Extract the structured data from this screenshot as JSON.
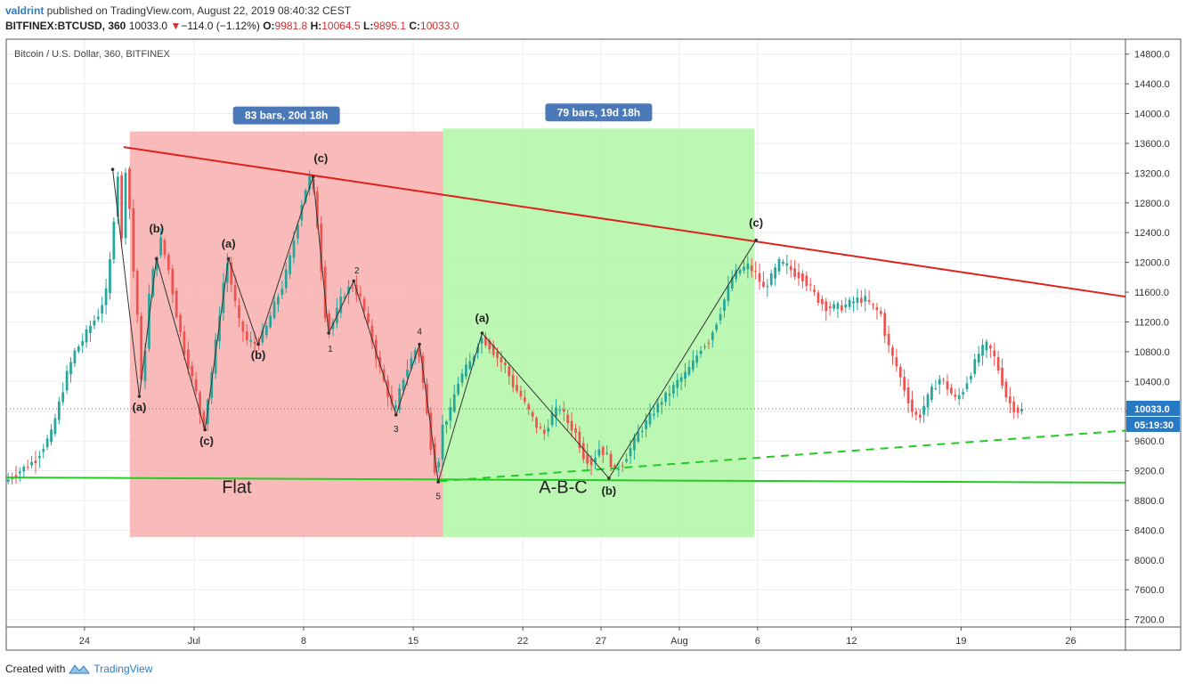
{
  "header": {
    "author": "valdrint",
    "published_text": " published on TradingView.com, August 22, 2019 08:40:32 CEST",
    "symbol": "BITFINEX:BTCUSD, 360",
    "last": "10033.0",
    "change_arrow": "▼",
    "change": "−114.0 (−1.12%)",
    "open_label": "O:",
    "open": "9981.8",
    "high_label": "H:",
    "high": "10064.5",
    "low_label": "L:",
    "low": "9895.1",
    "close_label": "C:",
    "close": "10033.0"
  },
  "footer": {
    "created_with": "Created with",
    "brand": "TradingView",
    "logo_icon": "tradingview-logo-icon"
  },
  "chart_data": {
    "type": "candlestick",
    "title": "Bitcoin / U.S. Dollar, 360, BITFINEX",
    "ylim": [
      7100,
      15000
    ],
    "yticks": [
      7200,
      7600,
      8000,
      8400,
      8800,
      9200,
      9600,
      10000,
      10400,
      10800,
      11200,
      11600,
      12000,
      12400,
      12800,
      13200,
      13600,
      14000,
      14400,
      14800
    ],
    "ytick_labels": [
      "7200.0",
      "7600.0",
      "8000.0",
      "8400.0",
      "8800.0",
      "9200.0",
      "9600.0",
      "10000.0",
      "10400.0",
      "10800.0",
      "11200.0",
      "11600.0",
      "12000.0",
      "12400.0",
      "12800.0",
      "13200.0",
      "13600.0",
      "14000.0",
      "14400.0",
      "14800.0"
    ],
    "xlim": [
      -5,
      66.5
    ],
    "xticks": [
      {
        "day": 0,
        "label": "24"
      },
      {
        "day": 7,
        "label": "Jul"
      },
      {
        "day": 14,
        "label": "8"
      },
      {
        "day": 21,
        "label": "15"
      },
      {
        "day": 28,
        "label": "22"
      },
      {
        "day": 33,
        "label": "27"
      },
      {
        "day": 38,
        "label": "Aug"
      },
      {
        "day": 43,
        "label": "6"
      },
      {
        "day": 49,
        "label": "12"
      },
      {
        "day": 56,
        "label": "19"
      },
      {
        "day": 63,
        "label": "26"
      }
    ],
    "last_price": 10033.0,
    "last_price_label": "10033.0",
    "countdown": "05:19:30",
    "colors": {
      "up": "#26a69a",
      "down": "#ef5350",
      "resistance": "#e0201c",
      "support": "#22cc22",
      "flat_zone": "#f7a3a3",
      "abc_zone": "#a6f59a",
      "badge": "#4a78b8",
      "last_price": "#2879c4"
    },
    "price_path": [
      [
        -5,
        9050
      ],
      [
        -4.5,
        9120
      ],
      [
        -4,
        9200
      ],
      [
        -3,
        9350
      ],
      [
        -2,
        9700
      ],
      [
        -1.5,
        10100
      ],
      [
        -1,
        10500
      ],
      [
        -0.5,
        10800
      ],
      [
        0,
        10950
      ],
      [
        0.5,
        11150
      ],
      [
        1,
        11300
      ],
      [
        1.5,
        11600
      ],
      [
        1.8,
        12100
      ],
      [
        2,
        12600
      ],
      [
        2.3,
        13300
      ],
      [
        2.5,
        12300
      ],
      [
        2.8,
        13450
      ],
      [
        3.2,
        12000
      ],
      [
        3.5,
        11300
      ],
      [
        3.8,
        10200
      ],
      [
        4.2,
        11500
      ],
      [
        4.6,
        12000
      ],
      [
        5,
        12300
      ],
      [
        5.5,
        11900
      ],
      [
        6,
        11300
      ],
      [
        6.5,
        10800
      ],
      [
        7.2,
        10300
      ],
      [
        7.7,
        9750
      ],
      [
        8.3,
        10600
      ],
      [
        8.8,
        11400
      ],
      [
        9.2,
        12050
      ],
      [
        9.6,
        11600
      ],
      [
        10,
        11200
      ],
      [
        10.5,
        10950
      ],
      [
        11.1,
        10900
      ],
      [
        11.7,
        11100
      ],
      [
        12.2,
        11400
      ],
      [
        12.8,
        11700
      ],
      [
        13.3,
        12100
      ],
      [
        13.7,
        12500
      ],
      [
        14.1,
        12900
      ],
      [
        14.6,
        13200
      ],
      [
        15,
        12500
      ],
      [
        15.3,
        11800
      ],
      [
        15.6,
        11050
      ],
      [
        16,
        11200
      ],
      [
        16.6,
        11550
      ],
      [
        17.2,
        11700
      ],
      [
        17.8,
        11500
      ],
      [
        18.3,
        11100
      ],
      [
        18.8,
        10700
      ],
      [
        19.4,
        10300
      ],
      [
        19.9,
        9950
      ],
      [
        20.4,
        10400
      ],
      [
        21,
        10700
      ],
      [
        21.4,
        10900
      ],
      [
        21.8,
        10300
      ],
      [
        22.2,
        9600
      ],
      [
        22.6,
        9100
      ],
      [
        23,
        9800
      ],
      [
        23.5,
        10000
      ],
      [
        23.9,
        10350
      ],
      [
        24.4,
        10550
      ],
      [
        24.9,
        10700
      ],
      [
        25.4,
        11000
      ],
      [
        25.9,
        10900
      ],
      [
        26.4,
        10750
      ],
      [
        27,
        10600
      ],
      [
        27.5,
        10350
      ],
      [
        28,
        10200
      ],
      [
        28.5,
        10000
      ],
      [
        29,
        9800
      ],
      [
        29.5,
        9700
      ],
      [
        30,
        9950
      ],
      [
        30.5,
        10050
      ],
      [
        31,
        9850
      ],
      [
        31.5,
        9700
      ],
      [
        32,
        9400
      ],
      [
        32.5,
        9300
      ],
      [
        33,
        9500
      ],
      [
        33.5,
        9400
      ],
      [
        34,
        9200
      ],
      [
        34.5,
        9300
      ],
      [
        35,
        9500
      ],
      [
        35.5,
        9700
      ],
      [
        36,
        9850
      ],
      [
        36.5,
        10000
      ],
      [
        37,
        10150
      ],
      [
        37.5,
        10250
      ],
      [
        38,
        10400
      ],
      [
        38.5,
        10500
      ],
      [
        39,
        10650
      ],
      [
        39.5,
        10850
      ],
      [
        40,
        10950
      ],
      [
        40.5,
        11200
      ],
      [
        41,
        11500
      ],
      [
        41.5,
        11800
      ],
      [
        42,
        11900
      ],
      [
        42.5,
        11950
      ],
      [
        43,
        11850
      ],
      [
        43.5,
        11650
      ],
      [
        44,
        11800
      ],
      [
        44.5,
        12000
      ],
      [
        45,
        11950
      ],
      [
        45.5,
        11850
      ],
      [
        46,
        11800
      ],
      [
        46.5,
        11650
      ],
      [
        47,
        11500
      ],
      [
        47.5,
        11400
      ],
      [
        48,
        11400
      ],
      [
        48.5,
        11400
      ],
      [
        49,
        11450
      ],
      [
        49.5,
        11500
      ],
      [
        50,
        11500
      ],
      [
        50.5,
        11400
      ],
      [
        51,
        11300
      ],
      [
        51.3,
        11000
      ],
      [
        51.6,
        10800
      ],
      [
        52,
        10600
      ],
      [
        52.5,
        10300
      ],
      [
        53,
        10000
      ],
      [
        53.4,
        9900
      ],
      [
        53.8,
        10100
      ],
      [
        54.3,
        10300
      ],
      [
        54.8,
        10450
      ],
      [
        55.3,
        10300
      ],
      [
        55.8,
        10150
      ],
      [
        56.3,
        10300
      ],
      [
        56.8,
        10550
      ],
      [
        57.3,
        10800
      ],
      [
        57.8,
        10900
      ],
      [
        58.2,
        10750
      ],
      [
        58.6,
        10500
      ],
      [
        59,
        10200
      ],
      [
        59.4,
        10050
      ],
      [
        59.8,
        10000
      ],
      [
        60.2,
        10033
      ]
    ],
    "trendlines": [
      {
        "name": "resistance",
        "from": [
          2.5,
          13550
        ],
        "to": [
          66.5,
          11540
        ],
        "style": "solid"
      },
      {
        "name": "support",
        "from": [
          -5,
          9110
        ],
        "to": [
          66.5,
          9040
        ],
        "style": "solid"
      },
      {
        "name": "rising-support",
        "from": [
          22.7,
          9060
        ],
        "to": [
          66.5,
          9740
        ],
        "style": "dashed"
      }
    ],
    "zones": [
      {
        "name": "flat",
        "from_day": 2.9,
        "to_day": 22.9,
        "low": 8310,
        "high": 13760,
        "badge": "83 bars, 20d 18h",
        "label": "Flat"
      },
      {
        "name": "abc",
        "from_day": 22.9,
        "to_day": 42.8,
        "low": 8310,
        "high": 13800,
        "badge": "79 bars, 19d 18h",
        "label": "A-B-C"
      }
    ],
    "wave_path_flat": [
      [
        1.8,
        13250
      ],
      [
        3.5,
        10200
      ],
      [
        4.6,
        12050
      ],
      [
        7.7,
        9750
      ],
      [
        9.2,
        12050
      ],
      [
        11.1,
        10900
      ],
      [
        14.6,
        13150
      ],
      [
        15.6,
        11050
      ],
      [
        17.2,
        11750
      ],
      [
        19.9,
        9950
      ],
      [
        21.4,
        10900
      ],
      [
        22.6,
        9050
      ]
    ],
    "wave_path_abc": [
      [
        22.6,
        9050
      ],
      [
        25.4,
        11050
      ],
      [
        33.5,
        9100
      ],
      [
        42.9,
        12300
      ]
    ],
    "wave_labels": [
      {
        "text": "(a)",
        "day": 3.5,
        "price": 10000
      },
      {
        "text": "(b)",
        "day": 4.6,
        "price": 12400
      },
      {
        "text": "(c)",
        "day": 7.8,
        "price": 9550
      },
      {
        "text": "(a)",
        "day": 9.2,
        "price": 12200
      },
      {
        "text": "(b)",
        "day": 11.1,
        "price": 10700
      },
      {
        "text": "(c)",
        "day": 15.1,
        "price": 13350
      },
      {
        "text": "1",
        "day": 15.7,
        "price": 10800
      },
      {
        "text": "2",
        "day": 17.4,
        "price": 11850
      },
      {
        "text": "3",
        "day": 19.9,
        "price": 9720
      },
      {
        "text": "4",
        "day": 21.4,
        "price": 11030
      },
      {
        "text": "5",
        "day": 22.6,
        "price": 8820
      },
      {
        "text": "(a)",
        "day": 25.4,
        "price": 11200
      },
      {
        "text": "(b)",
        "day": 33.5,
        "price": 8880
      },
      {
        "text": "(c)",
        "day": 42.9,
        "price": 12480
      }
    ]
  }
}
